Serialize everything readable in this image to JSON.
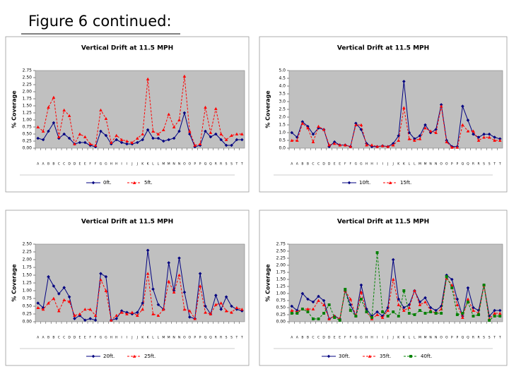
{
  "page_title": "Figure 6 continued:",
  "chart_data": [
    {
      "type": "line",
      "title": "Vertical Drift at 11.5 MPH",
      "y_label": "% Coverage",
      "categories": [
        "A",
        "A",
        "B",
        "B",
        "C",
        "C",
        "D",
        "D",
        "E",
        "E",
        "F",
        "F",
        "G",
        "G",
        "H",
        "H",
        "I",
        "I",
        "J",
        "J",
        "K",
        "K",
        "L",
        "L",
        "M",
        "M",
        "N",
        "N",
        "O",
        "O",
        "P",
        "P",
        "Q",
        "Q",
        "R",
        "R",
        "S",
        "S",
        "T",
        "T"
      ],
      "ylim": [
        0,
        2.75
      ],
      "yticks": [
        {
          "value": 0,
          "label": "0.00"
        },
        {
          "value": 0.25,
          "label": "0.25"
        },
        {
          "value": 0.5,
          "label": "0.50"
        },
        {
          "value": 0.75,
          "label": "0.75"
        },
        {
          "value": 1,
          "label": "1.00"
        },
        {
          "value": 1.25,
          "label": "1.25"
        },
        {
          "value": 1.5,
          "label": "1.50"
        },
        {
          "value": 1.75,
          "label": "1.75"
        },
        {
          "value": 2,
          "label": "2.00"
        },
        {
          "value": 2.25,
          "label": "2.25"
        },
        {
          "value": 2.5,
          "label": "2.50"
        },
        {
          "value": 2.75,
          "label": "2.75"
        }
      ],
      "series": [
        {
          "name": "0ft.",
          "color": "#000080",
          "marker": "diamond",
          "dashed": false,
          "values": [
            0.35,
            0.3,
            0.6,
            0.9,
            0.35,
            0.5,
            0.35,
            0.15,
            0.2,
            0.2,
            0.1,
            0.05,
            0.6,
            0.45,
            0.15,
            0.3,
            0.2,
            0.15,
            0.15,
            0.2,
            0.3,
            0.65,
            0.35,
            0.35,
            0.25,
            0.3,
            0.35,
            0.6,
            1.25,
            0.5,
            0.05,
            0.1,
            0.6,
            0.4,
            0.5,
            0.3,
            0.1,
            0.1,
            0.3,
            0.3
          ]
        },
        {
          "name": "5ft.",
          "color": "#ff0000",
          "marker": "triangle",
          "dashed": true,
          "values": [
            0.75,
            0.6,
            1.45,
            1.8,
            0.4,
            1.35,
            1.15,
            0.15,
            0.5,
            0.4,
            0.15,
            0.1,
            1.35,
            1.05,
            0.2,
            0.45,
            0.3,
            0.25,
            0.2,
            0.35,
            0.5,
            2.45,
            0.6,
            0.5,
            0.65,
            1.2,
            0.75,
            1.0,
            2.55,
            0.6,
            0.1,
            0.15,
            1.45,
            0.55,
            1.4,
            0.5,
            0.3,
            0.45,
            0.5,
            0.5
          ]
        }
      ]
    },
    {
      "type": "line",
      "title": "Vertical Drift at 11.5 MPH",
      "y_label": "% Coverage",
      "categories": [
        "A",
        "A",
        "B",
        "B",
        "C",
        "C",
        "D",
        "D",
        "E",
        "E",
        "F",
        "F",
        "G",
        "G",
        "H",
        "H",
        "I",
        "I",
        "J",
        "J",
        "K",
        "K",
        "L",
        "L",
        "M",
        "M",
        "N",
        "N",
        "O",
        "O",
        "P",
        "P",
        "Q",
        "Q",
        "R",
        "R",
        "S",
        "S",
        "T",
        "T"
      ],
      "ylim": [
        0,
        5
      ],
      "yticks": [
        {
          "value": 0,
          "label": "0.0"
        },
        {
          "value": 0.5,
          "label": "0.5"
        },
        {
          "value": 1,
          "label": "1.0"
        },
        {
          "value": 1.5,
          "label": "1.5"
        },
        {
          "value": 2,
          "label": "2.0"
        },
        {
          "value": 2.5,
          "label": "2.5"
        },
        {
          "value": 3,
          "label": "3.0"
        },
        {
          "value": 3.5,
          "label": "3.5"
        },
        {
          "value": 4,
          "label": "4.0"
        },
        {
          "value": 4.5,
          "label": "4.5"
        },
        {
          "value": 5,
          "label": "5.0"
        }
      ],
      "series": [
        {
          "name": "10ft.",
          "color": "#000080",
          "marker": "diamond",
          "dashed": false,
          "values": [
            1.0,
            0.7,
            1.7,
            1.4,
            0.9,
            1.3,
            1.2,
            0.1,
            0.4,
            0.2,
            0.2,
            0.1,
            1.6,
            1.2,
            0.3,
            0.1,
            0.1,
            0.15,
            0.1,
            0.3,
            0.8,
            4.3,
            1.0,
            0.6,
            0.8,
            1.5,
            1.0,
            1.2,
            2.8,
            0.5,
            0.1,
            0.1,
            2.7,
            1.8,
            0.9,
            0.7,
            0.9,
            0.9,
            0.7,
            0.6
          ]
        },
        {
          "name": "15ft.",
          "color": "#ff0000",
          "marker": "triangle",
          "dashed": true,
          "values": [
            0.5,
            0.5,
            1.6,
            1.3,
            0.4,
            1.4,
            1.2,
            0.2,
            0.3,
            0.2,
            0.2,
            0.1,
            1.5,
            1.5,
            0.2,
            0.2,
            0.1,
            0.15,
            0.1,
            0.2,
            0.5,
            2.6,
            0.6,
            0.5,
            0.6,
            1.3,
            1.1,
            1.0,
            2.7,
            0.4,
            0.05,
            0.05,
            1.5,
            1.1,
            1.1,
            0.5,
            0.7,
            0.7,
            0.5,
            0.5
          ]
        }
      ]
    },
    {
      "type": "line",
      "title": "Vertical Drift at 11.5 MPH",
      "y_label": "% Coverage",
      "categories": [
        "A",
        "A",
        "B",
        "B",
        "C",
        "C",
        "D",
        "D",
        "E",
        "E",
        "F",
        "F",
        "G",
        "G",
        "H",
        "H",
        "I",
        "I",
        "J",
        "J",
        "K",
        "K",
        "L",
        "L",
        "M",
        "M",
        "N",
        "N",
        "O",
        "O",
        "P",
        "P",
        "Q",
        "Q",
        "R",
        "R",
        "S",
        "S",
        "T",
        "T"
      ],
      "ylim": [
        0,
        2.5
      ],
      "yticks": [
        {
          "value": 0,
          "label": "0.00"
        },
        {
          "value": 0.25,
          "label": "0.25"
        },
        {
          "value": 0.5,
          "label": "0.50"
        },
        {
          "value": 0.75,
          "label": "0.75"
        },
        {
          "value": 1,
          "label": "1.00"
        },
        {
          "value": 1.25,
          "label": "1.25"
        },
        {
          "value": 1.5,
          "label": "1.50"
        },
        {
          "value": 1.75,
          "label": "1.75"
        },
        {
          "value": 2,
          "label": "2.00"
        },
        {
          "value": 2.25,
          "label": "2.25"
        },
        {
          "value": 2.5,
          "label": "2.50"
        }
      ],
      "series": [
        {
          "name": "20ft.",
          "color": "#000080",
          "marker": "diamond",
          "dashed": false,
          "values": [
            0.6,
            0.45,
            1.45,
            1.15,
            0.9,
            1.1,
            0.8,
            0.1,
            0.2,
            0.05,
            0.1,
            0.05,
            1.55,
            1.45,
            0.05,
            0.1,
            0.35,
            0.3,
            0.25,
            0.3,
            0.6,
            2.3,
            1.05,
            0.55,
            0.4,
            1.9,
            1.0,
            2.05,
            0.95,
            0.15,
            0.1,
            1.55,
            0.5,
            0.25,
            0.85,
            0.4,
            0.8,
            0.5,
            0.4,
            0.35
          ]
        },
        {
          "name": "25ft.",
          "color": "#ff0000",
          "marker": "triangle",
          "dashed": true,
          "values": [
            0.45,
            0.4,
            0.6,
            0.75,
            0.35,
            0.7,
            0.65,
            0.2,
            0.25,
            0.4,
            0.4,
            0.2,
            1.35,
            1.0,
            0.05,
            0.2,
            0.3,
            0.25,
            0.3,
            0.2,
            0.4,
            1.55,
            0.25,
            0.2,
            0.4,
            1.3,
            0.95,
            1.5,
            0.4,
            0.35,
            0.1,
            1.15,
            0.3,
            0.25,
            0.55,
            0.6,
            0.35,
            0.3,
            0.45,
            0.4
          ]
        }
      ]
    },
    {
      "type": "line",
      "title": "Vertical Drift at 11.5 MPH",
      "y_label": "% Coverage",
      "categories": [
        "A",
        "A",
        "B",
        "B",
        "C",
        "C",
        "D",
        "D",
        "E",
        "E",
        "F",
        "F",
        "G",
        "G",
        "H",
        "H",
        "I",
        "I",
        "J",
        "J",
        "K",
        "K",
        "L",
        "L",
        "M",
        "M",
        "N",
        "N",
        "O",
        "O",
        "P",
        "P",
        "Q",
        "Q",
        "R",
        "R",
        "S",
        "S",
        "T",
        "T"
      ],
      "ylim": [
        0,
        2.75
      ],
      "yticks": [
        {
          "value": 0,
          "label": "0.00"
        },
        {
          "value": 0.25,
          "label": "0.25"
        },
        {
          "value": 0.5,
          "label": "0.50"
        },
        {
          "value": 0.75,
          "label": "0.75"
        },
        {
          "value": 1,
          "label": "1.00"
        },
        {
          "value": 1.25,
          "label": "1.25"
        },
        {
          "value": 1.5,
          "label": "1.50"
        },
        {
          "value": 1.75,
          "label": "1.75"
        },
        {
          "value": 2,
          "label": "2.00"
        },
        {
          "value": 2.25,
          "label": "2.25"
        },
        {
          "value": 2.5,
          "label": "2.50"
        },
        {
          "value": 2.75,
          "label": "2.75"
        }
      ],
      "series": [
        {
          "name": "30ft.",
          "color": "#000080",
          "marker": "diamond",
          "dashed": false,
          "values": [
            0.55,
            0.4,
            1.0,
            0.8,
            0.7,
            0.9,
            0.75,
            0.1,
            0.2,
            0.1,
            1.1,
            0.6,
            0.2,
            1.3,
            0.45,
            0.2,
            0.35,
            0.2,
            0.5,
            2.2,
            0.8,
            0.5,
            0.6,
            1.1,
            0.7,
            0.85,
            0.5,
            0.4,
            0.55,
            1.65,
            1.5,
            0.8,
            0.2,
            1.2,
            0.5,
            0.4,
            1.3,
            0.2,
            0.4,
            0.4
          ]
        },
        {
          "name": "35ft.",
          "color": "#ff0000",
          "marker": "triangle",
          "dashed": true,
          "values": [
            0.4,
            0.35,
            0.45,
            0.45,
            0.45,
            0.75,
            0.6,
            0.1,
            0.2,
            0.1,
            1.1,
            0.8,
            0.2,
            1.05,
            0.35,
            0.1,
            0.25,
            0.15,
            0.4,
            1.5,
            0.6,
            0.4,
            0.5,
            1.1,
            0.6,
            0.7,
            0.4,
            0.3,
            0.45,
            1.55,
            1.3,
            0.6,
            0.15,
            0.8,
            0.4,
            0.3,
            1.3,
            0.1,
            0.3,
            0.3
          ]
        },
        {
          "name": "40ft.",
          "color": "#008000",
          "marker": "square",
          "dashed": true,
          "values": [
            0.3,
            0.3,
            0.45,
            0.35,
            0.1,
            0.1,
            0.3,
            0.6,
            0.15,
            0.05,
            1.15,
            0.4,
            0.2,
            0.8,
            0.35,
            0.15,
            2.45,
            0.35,
            0.2,
            0.35,
            0.2,
            1.1,
            0.3,
            0.25,
            0.4,
            0.3,
            0.35,
            0.3,
            0.3,
            1.6,
            1.2,
            0.25,
            0.3,
            0.7,
            0.2,
            0.25,
            1.3,
            0.05,
            0.2,
            0.2
          ]
        }
      ]
    }
  ]
}
